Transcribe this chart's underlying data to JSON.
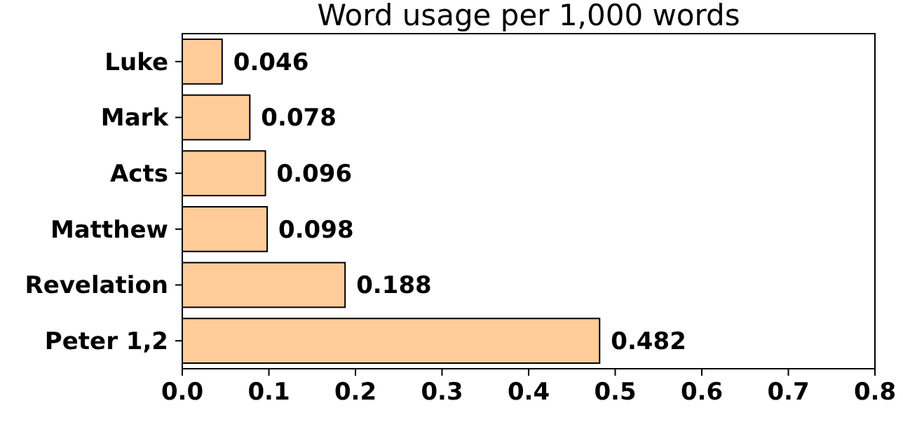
{
  "chart_data": {
    "type": "bar",
    "orientation": "horizontal",
    "title": "Word usage per 1,000 words",
    "categories": [
      "Luke",
      "Mark",
      "Acts",
      "Matthew",
      "Revelation",
      "Peter 1,2"
    ],
    "values": [
      0.046,
      0.078,
      0.096,
      0.098,
      0.188,
      0.482
    ],
    "color": "#ffcc99",
    "xlim": [
      0,
      0.8
    ],
    "xticks": [
      {
        "value": 0,
        "label": "0.0"
      },
      0.1,
      0.2,
      0.3,
      0.4,
      0.5,
      0.6,
      0.7,
      0.8
    ],
    "data_labels": true
  }
}
